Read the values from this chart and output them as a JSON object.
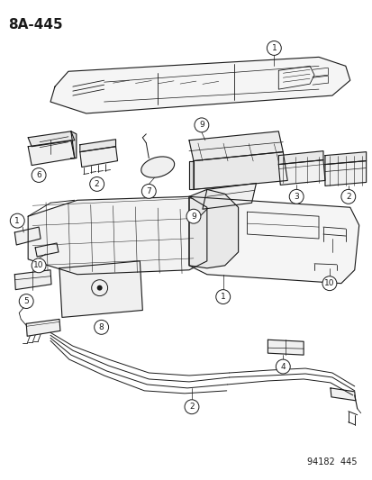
{
  "title": "8A-445",
  "footer": "94182  445",
  "bg_color": "#ffffff",
  "line_color": "#1a1a1a",
  "title_fontsize": 11,
  "footer_fontsize": 7,
  "fig_width": 4.14,
  "fig_height": 5.33,
  "dpi": 100
}
